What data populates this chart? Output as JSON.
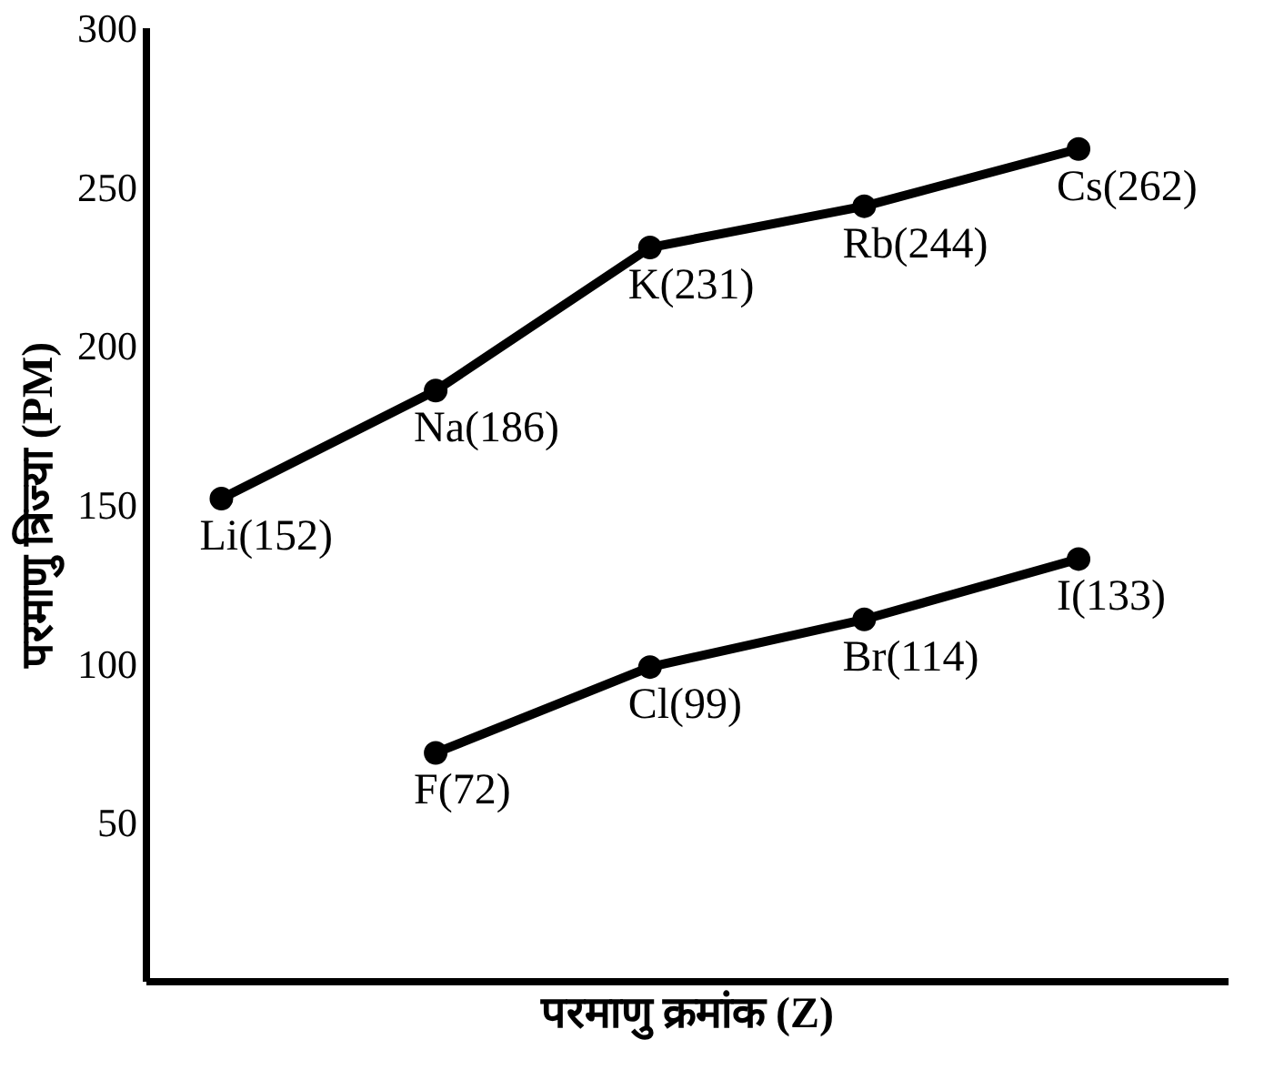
{
  "chart_data": {
    "type": "line",
    "xlabel": "परमाणु क्रमांक (Z)",
    "ylabel": "परमाणु त्रिज्या (PM)",
    "categories": [
      null,
      null,
      null,
      null,
      null
    ],
    "ylim": [
      0,
      300
    ],
    "yticks": [
      50,
      100,
      150,
      200,
      250,
      300
    ],
    "tick_labels": "y",
    "grid": false,
    "marker": "circle",
    "line_style": "solid",
    "series": [
      {
        "color": "#000000",
        "values": [
          152,
          186,
          231,
          244,
          262
        ],
        "value_labels": [
          "Li(152)",
          "Na(186)",
          "K(231)",
          "Rb(244)",
          "Cs(262)"
        ]
      },
      {
        "color": "#000000",
        "values": [
          null,
          72,
          99,
          114,
          133
        ],
        "value_labels": [
          null,
          "F(72)",
          "Cl(99)",
          "Br(114)",
          "I(133)"
        ]
      }
    ]
  }
}
